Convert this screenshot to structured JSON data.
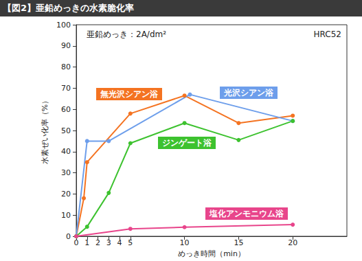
{
  "chart_data": {
    "type": "line",
    "title": "【図2】亜鉛めっきの水素脆化率",
    "x_label": "めっき時間（min）",
    "y_label": "水素ぜい化率（%）",
    "annotations": [
      "亜鉛めっき：2A/dm²",
      "HRC52"
    ],
    "xlim": [
      0,
      25
    ],
    "xticks": [
      0,
      1,
      2,
      3,
      4,
      5,
      10,
      15,
      20
    ],
    "ylim": [
      0,
      100
    ],
    "yticks": [
      0,
      10,
      20,
      30,
      40,
      50,
      60,
      70,
      80,
      90,
      100
    ],
    "grid": false,
    "marker": "circle",
    "series": [
      {
        "name": "無光沢シアン浴",
        "color": "#f47321",
        "x": [
          0,
          0.7,
          1,
          5,
          10,
          15,
          20
        ],
        "values": [
          0,
          18,
          35,
          58,
          66.5,
          53.5,
          57
        ]
      },
      {
        "name": "光沢シアン浴",
        "color": "#6d9eeb",
        "x": [
          0,
          1,
          3,
          10.5,
          20
        ],
        "values": [
          0,
          45,
          45,
          67,
          54.5
        ]
      },
      {
        "name": "ジンゲート浴",
        "color": "#3dc22f",
        "x": [
          0,
          1,
          3,
          5,
          10,
          15,
          20
        ],
        "values": [
          0,
          4.5,
          20.5,
          44,
          53.5,
          45.5,
          54.5
        ]
      },
      {
        "name": "塩化アンモニウム浴",
        "color": "#e8458b",
        "x": [
          0,
          5,
          10,
          20
        ],
        "values": [
          0,
          3.5,
          4.3,
          5.5
        ]
      }
    ]
  }
}
